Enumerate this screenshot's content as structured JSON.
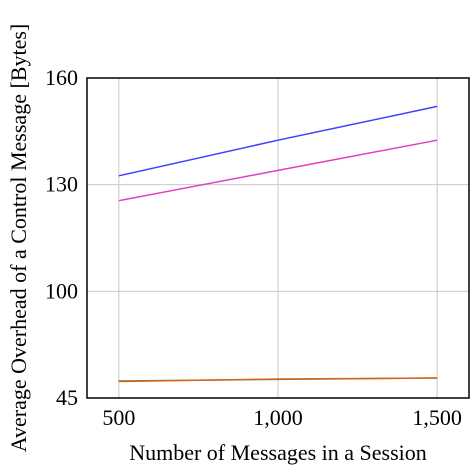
{
  "chart_data": {
    "type": "line",
    "xlabel": "Number of Messages in a Session",
    "ylabel": "Average Overhead of a Control Message [Bytes]",
    "x": [
      500,
      1000,
      1500
    ],
    "xlim": [
      400,
      1600
    ],
    "ylim": [
      45,
      160
    ],
    "y_ticks": [
      45,
      100,
      130,
      160
    ],
    "y_tick_labels": [
      "45",
      "100",
      "130",
      "160"
    ],
    "x_ticks": [
      500,
      1000,
      1500
    ],
    "x_tick_labels": [
      "500",
      "1,000",
      "1,500"
    ],
    "grid": true,
    "series": [
      {
        "values": [
          132.5,
          142.5,
          152
        ],
        "color": "#4040ff"
      },
      {
        "values": [
          125.5,
          134,
          142.5
        ],
        "color": "#e040c0"
      },
      {
        "values": [
          53.8,
          54.6,
          55.3
        ],
        "color": "#40a040"
      },
      {
        "values": [
          53.5,
          54.8,
          55.3
        ],
        "color": "#e06020"
      }
    ]
  }
}
